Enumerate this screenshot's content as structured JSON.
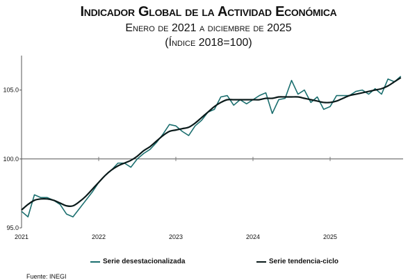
{
  "chart_data": {
    "type": "line",
    "title": "Indicador Global de la Actividad Económica",
    "subtitle": "Enero de 2021 a diciembre de 2025",
    "subtitle2": "(Índice 2018=100)",
    "xlabel": "",
    "ylabel": "",
    "ylim": [
      95.0,
      107.5
    ],
    "yticks": [
      "95.0",
      "100.0",
      "105.0"
    ],
    "ytick_values": [
      95,
      100,
      105
    ],
    "xticks": [
      "2021",
      "2022",
      "2023",
      "2024",
      "2025"
    ],
    "reference_line": 100,
    "x_start": "2021-01",
    "x_end": "2025-12",
    "frequency": "monthly",
    "legend_position": "bottom",
    "series": [
      {
        "name": "Serie desestacionalizada",
        "color": "#1a6e6e",
        "values": [
          96.2,
          95.8,
          97.4,
          97.2,
          97.2,
          97.0,
          96.7,
          96.0,
          95.8,
          96.4,
          97.0,
          97.6,
          98.3,
          98.8,
          99.2,
          99.7,
          99.7,
          99.4,
          100.0,
          100.4,
          100.7,
          101.2,
          101.8,
          102.5,
          102.4,
          102.0,
          101.7,
          102.4,
          102.8,
          103.4,
          103.6,
          104.5,
          104.6,
          103.9,
          104.3,
          104.0,
          104.3,
          104.6,
          104.8,
          103.3,
          104.3,
          104.4,
          105.7,
          104.7,
          105.0,
          104.1,
          104.5,
          103.6,
          103.8,
          104.6,
          104.6,
          104.6,
          104.9,
          105.0,
          104.7,
          105.1,
          104.7,
          105.8,
          105.6,
          106.0
        ]
      },
      {
        "name": "Serie tendencia-ciclo",
        "color": "#0a1a1a",
        "values": [
          96.3,
          96.7,
          97.0,
          97.1,
          97.1,
          97.0,
          96.8,
          96.6,
          96.6,
          96.9,
          97.3,
          97.8,
          98.3,
          98.8,
          99.2,
          99.5,
          99.7,
          99.9,
          100.2,
          100.6,
          100.9,
          101.3,
          101.7,
          102.0,
          102.1,
          102.2,
          102.3,
          102.6,
          103.0,
          103.4,
          103.8,
          104.1,
          104.3,
          104.3,
          104.3,
          104.3,
          104.3,
          104.3,
          104.4,
          104.4,
          104.5,
          104.5,
          104.5,
          104.5,
          104.4,
          104.3,
          104.2,
          104.1,
          104.1,
          104.2,
          104.4,
          104.6,
          104.7,
          104.8,
          104.9,
          105.0,
          105.1,
          105.3,
          105.6,
          105.9
        ]
      }
    ],
    "source": "Fuente: INEGI"
  }
}
